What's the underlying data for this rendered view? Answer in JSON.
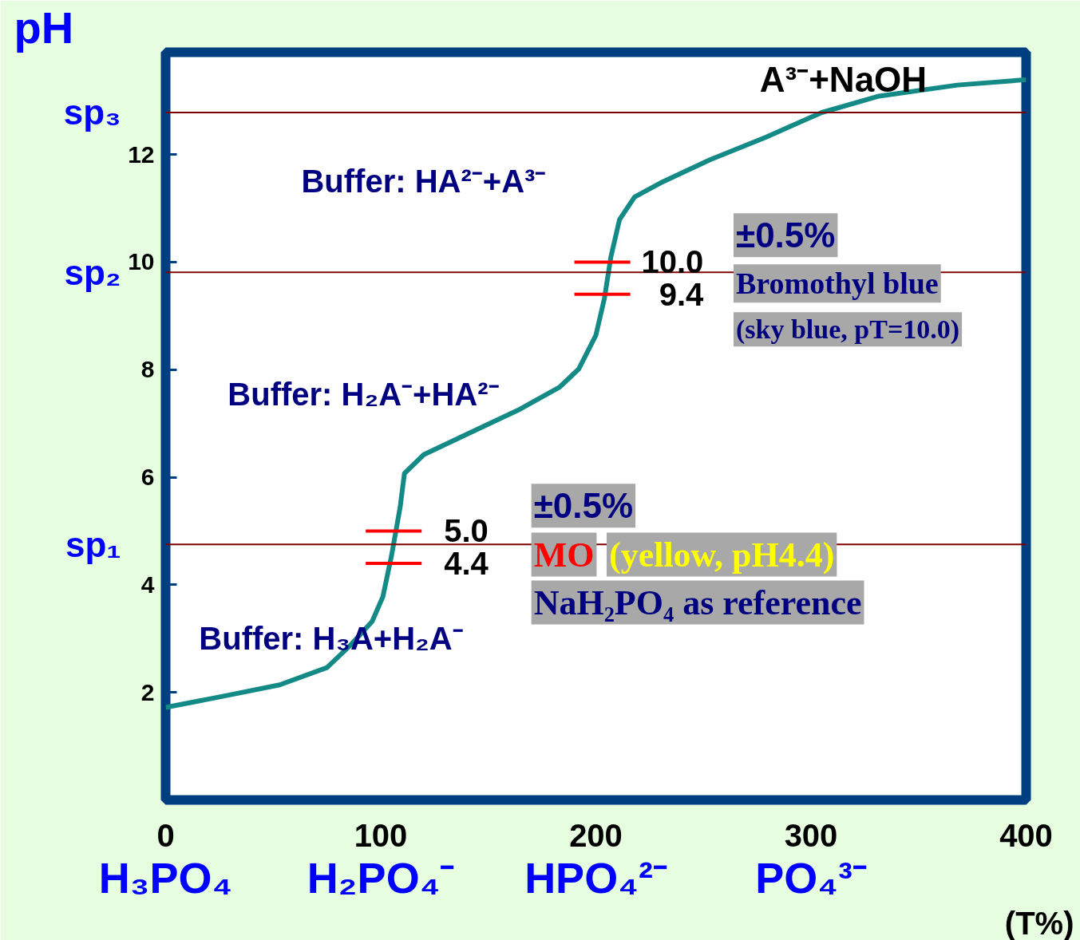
{
  "chart_data": {
    "type": "line",
    "xlabel": "(T%)",
    "ylabel": "pH",
    "xlim": [
      0,
      400
    ],
    "ylim": [
      0,
      13.9
    ],
    "xticks": [
      0,
      100,
      200,
      300,
      400
    ],
    "yticks": [
      2,
      4,
      6,
      8,
      10,
      12
    ],
    "grid": false,
    "line_style": "solid",
    "series": [
      {
        "color": "#138a86",
        "x": [
          0,
          27,
          53,
          75,
          86,
          96,
          101,
          105,
          109,
          111,
          120,
          138,
          164,
          183,
          192,
          200,
          204,
          207,
          211,
          218,
          231,
          253,
          279,
          305,
          331,
          368,
          400
        ],
        "values": [
          1.72,
          1.93,
          2.14,
          2.46,
          2.88,
          3.32,
          3.78,
          4.54,
          5.44,
          6.07,
          6.42,
          6.76,
          7.25,
          7.67,
          8.01,
          8.64,
          9.33,
          10.1,
          10.79,
          11.21,
          11.49,
          11.9,
          12.32,
          12.78,
          13.08,
          13.29,
          13.39
        ]
      },
      {
        "color": "#ff0000",
        "x": [
          190,
          216
        ],
        "values": [
          10.0,
          10.0
        ]
      },
      {
        "color": "#ff0000",
        "x": [
          190,
          216
        ],
        "values": [
          9.4,
          9.4
        ]
      },
      {
        "color": "#ff0000",
        "x": [
          93,
          119
        ],
        "values": [
          5.0,
          5.0
        ]
      },
      {
        "color": "#ff0000",
        "x": [
          93,
          119
        ],
        "values": [
          4.4,
          4.4
        ]
      }
    ],
    "ref_lines": [
      {
        "axis": "y",
        "value": 12.78,
        "label": "sp₃",
        "color": "#800000"
      },
      {
        "axis": "y",
        "value": 9.81,
        "label": "sp₂",
        "color": "#800000"
      },
      {
        "axis": "y",
        "value": 4.75,
        "label": "sp₁",
        "color": "#800000"
      }
    ],
    "annotations": [
      "A³⁻+NaOH",
      "Buffer: HA²⁻+A³⁻",
      "Buffer: H₂A⁻+HA²⁻",
      "Buffer: H₃A+H₂A⁻",
      "10.0",
      "9.4",
      "5.0",
      "4.4",
      "±0.5%",
      "Bromothyl blue",
      "(sky blue, pT=10.0)",
      "±0.5%",
      "MO",
      "(yellow, pH4.4)",
      "NaH₂PO₄ as reference",
      "H₃PO₄",
      "H₂PO₄⁻",
      "HPO₄²⁻",
      "PO₄³⁻"
    ]
  }
}
